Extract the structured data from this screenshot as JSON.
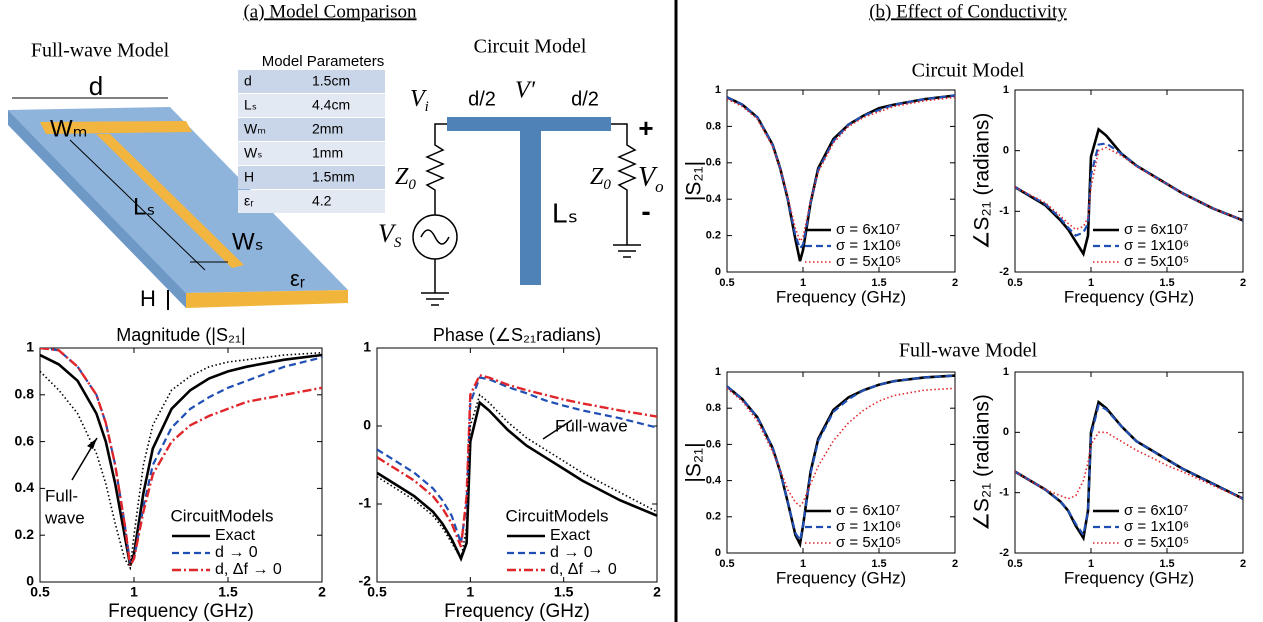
{
  "panel_a": {
    "heading": "(a) Model Comparison",
    "geometry_title": "Full-wave Model",
    "geometry_labels": {
      "d": "d",
      "wm": "Wₘ",
      "ls": "Lₛ",
      "ws": "Wₛ",
      "h": "H",
      "er": "εᵣ"
    }
  },
  "table": {
    "title": "Model Parameters",
    "rows": [
      [
        "d",
        "1.5cm"
      ],
      [
        "Lₛ",
        "4.4cm"
      ],
      [
        "Wₘ",
        "2mm"
      ],
      [
        "Wₛ",
        "1mm"
      ],
      [
        "H",
        "1.5mm"
      ],
      [
        "εᵣ",
        "4.2"
      ]
    ]
  },
  "circuit": {
    "title": "Circuit Model",
    "vi": [
      "V",
      "i"
    ],
    "d_left": "d/2",
    "vp": "V′",
    "d_right": "d/2",
    "plus": "+",
    "minus": "-",
    "z_left": [
      "Z",
      "0"
    ],
    "z_right": [
      "Z",
      "0"
    ],
    "vs": [
      "V",
      "S"
    ],
    "vo": [
      "V",
      "o"
    ],
    "ls": "Lₛ"
  },
  "panel_b": {
    "heading": "(b) Effect of Conductivity",
    "subheadings": [
      "Circuit Model",
      "Full-wave Model"
    ]
  },
  "chart_data": [
    {
      "type": "line",
      "title": "Magnitude (|S₂₁|",
      "xlabel": "Frequency (GHz)",
      "legend_title": "CircuitModels",
      "legend": "lower right",
      "annotation": [
        "Full-",
        "wave"
      ],
      "x": [
        0.5,
        0.6,
        0.7,
        0.8,
        0.85,
        0.9,
        0.95,
        0.98,
        1.0,
        1.05,
        1.1,
        1.2,
        1.3,
        1.4,
        1.5,
        1.6,
        1.8,
        2.0
      ],
      "xlim": [
        0.5,
        2
      ],
      "xticks": [
        0.5,
        1,
        1.5,
        2
      ],
      "ylim": [
        0,
        1
      ],
      "yticks": [
        0,
        0.2,
        0.4,
        0.6,
        0.8,
        1
      ],
      "series": [
        {
          "name": "Exact",
          "color": "#000000",
          "dash": "solid",
          "values": [
            0.97,
            0.93,
            0.86,
            0.72,
            0.6,
            0.42,
            0.2,
            0.07,
            0.12,
            0.38,
            0.57,
            0.74,
            0.82,
            0.87,
            0.9,
            0.92,
            0.95,
            0.97
          ]
        },
        {
          "name": "d → 0",
          "color": "#1f4fb4",
          "dash": "dashed",
          "values": [
            1.0,
            0.99,
            0.92,
            0.8,
            0.68,
            0.5,
            0.25,
            0.08,
            0.1,
            0.32,
            0.5,
            0.66,
            0.74,
            0.79,
            0.83,
            0.86,
            0.92,
            0.96
          ]
        },
        {
          "name": "d, Δf → 0",
          "color": "#e0262b",
          "dash": "dashdot",
          "values": [
            1.0,
            0.99,
            0.92,
            0.8,
            0.68,
            0.5,
            0.25,
            0.07,
            0.1,
            0.3,
            0.46,
            0.6,
            0.67,
            0.71,
            0.74,
            0.77,
            0.8,
            0.83
          ]
        },
        {
          "color": "#000000",
          "dash": "dotted",
          "values": [
            0.9,
            0.82,
            0.72,
            0.55,
            0.42,
            0.25,
            0.1,
            0.06,
            0.2,
            0.5,
            0.67,
            0.82,
            0.88,
            0.92,
            0.94,
            0.95,
            0.97,
            0.98
          ]
        }
      ]
    },
    {
      "type": "line",
      "title": "Phase (∠S₂₁radians)",
      "xlabel": "Frequency (GHz)",
      "legend_title": "CircuitModels",
      "legend": "lower right",
      "annotation": [
        "Full-wave"
      ],
      "x": [
        0.5,
        0.6,
        0.7,
        0.8,
        0.85,
        0.9,
        0.95,
        0.98,
        1.0,
        1.05,
        1.1,
        1.2,
        1.3,
        1.4,
        1.5,
        1.6,
        1.8,
        2.0
      ],
      "xlim": [
        0.5,
        2
      ],
      "xticks": [
        0.5,
        1,
        1.5,
        2
      ],
      "ylim": [
        -2,
        1
      ],
      "yticks": [
        -2,
        -1,
        0,
        1
      ],
      "series": [
        {
          "name": "Exact",
          "color": "#000000",
          "dash": "solid",
          "values": [
            -0.6,
            -0.75,
            -0.9,
            -1.1,
            -1.25,
            -1.45,
            -1.7,
            -1.5,
            -0.2,
            0.3,
            0.2,
            -0.05,
            -0.25,
            -0.4,
            -0.55,
            -0.7,
            -0.95,
            -1.15
          ]
        },
        {
          "name": "d → 0",
          "color": "#1f4fb4",
          "dash": "dashed",
          "values": [
            -0.3,
            -0.45,
            -0.6,
            -0.8,
            -0.95,
            -1.15,
            -1.5,
            -1.0,
            0.3,
            0.62,
            0.6,
            0.5,
            0.42,
            0.33,
            0.26,
            0.2,
            0.1,
            -0.02
          ]
        },
        {
          "name": "d, Δf → 0",
          "color": "#e0262b",
          "dash": "dashdot",
          "values": [
            -0.4,
            -0.55,
            -0.7,
            -0.9,
            -1.05,
            -1.25,
            -1.55,
            -0.9,
            0.4,
            0.65,
            0.62,
            0.53,
            0.46,
            0.4,
            0.34,
            0.29,
            0.2,
            0.12
          ]
        },
        {
          "color": "#000000",
          "dash": "dotted",
          "values": [
            -0.65,
            -0.8,
            -0.95,
            -1.15,
            -1.3,
            -1.5,
            -1.7,
            -1.3,
            0.0,
            0.4,
            0.3,
            0.05,
            -0.15,
            -0.3,
            -0.45,
            -0.6,
            -0.85,
            -1.1
          ]
        }
      ]
    },
    {
      "type": "line",
      "xlabel": "Frequency (GHz)",
      "ylabel": "|S₂₁|",
      "legend": "lower right",
      "x": [
        0.5,
        0.6,
        0.7,
        0.8,
        0.85,
        0.9,
        0.95,
        0.98,
        1.0,
        1.05,
        1.1,
        1.2,
        1.3,
        1.4,
        1.5,
        1.6,
        1.8,
        2.0
      ],
      "xlim": [
        0.5,
        2
      ],
      "xticks": [
        0.5,
        1,
        1.5,
        2
      ],
      "ylim": [
        0,
        1
      ],
      "yticks": [
        0,
        0.2,
        0.4,
        0.6,
        0.8,
        1
      ],
      "series": [
        {
          "name": "σ = 6x10⁷",
          "color": "#000000",
          "dash": "solid",
          "values": [
            0.96,
            0.92,
            0.85,
            0.7,
            0.57,
            0.4,
            0.18,
            0.06,
            0.12,
            0.38,
            0.57,
            0.73,
            0.81,
            0.86,
            0.9,
            0.92,
            0.95,
            0.97
          ]
        },
        {
          "name": "σ = 1x10⁶",
          "color": "#1f4fb4",
          "dash": "dashed",
          "values": [
            0.96,
            0.92,
            0.85,
            0.7,
            0.57,
            0.4,
            0.2,
            0.13,
            0.15,
            0.38,
            0.56,
            0.72,
            0.81,
            0.86,
            0.89,
            0.92,
            0.95,
            0.97
          ]
        },
        {
          "name": "σ = 5x10⁵",
          "color": "#e0262b",
          "dash": "dotted",
          "values": [
            0.95,
            0.91,
            0.84,
            0.69,
            0.57,
            0.41,
            0.24,
            0.17,
            0.19,
            0.39,
            0.55,
            0.71,
            0.8,
            0.85,
            0.88,
            0.91,
            0.94,
            0.96
          ]
        }
      ]
    },
    {
      "type": "line",
      "xlabel": "Frequency (GHz)",
      "ylabel": "∠S₂₁ (radians)",
      "legend": "lower right",
      "x": [
        0.5,
        0.6,
        0.7,
        0.8,
        0.85,
        0.9,
        0.95,
        0.98,
        1.0,
        1.05,
        1.1,
        1.2,
        1.3,
        1.4,
        1.5,
        1.6,
        1.8,
        2.0
      ],
      "xlim": [
        0.5,
        2
      ],
      "xticks": [
        0.5,
        1,
        1.5,
        2
      ],
      "ylim": [
        -2,
        1
      ],
      "yticks": [
        -2,
        -1,
        0,
        1
      ],
      "series": [
        {
          "name": "σ = 6x10⁷",
          "color": "#000000",
          "dash": "solid",
          "values": [
            -0.6,
            -0.75,
            -0.9,
            -1.15,
            -1.3,
            -1.5,
            -1.7,
            -1.4,
            -0.1,
            0.35,
            0.25,
            -0.05,
            -0.25,
            -0.4,
            -0.55,
            -0.7,
            -0.95,
            -1.15
          ]
        },
        {
          "name": "σ = 1x10⁶",
          "color": "#1f4fb4",
          "dash": "dashed",
          "values": [
            -0.6,
            -0.74,
            -0.88,
            -1.12,
            -1.27,
            -1.4,
            -1.35,
            -1.2,
            -0.4,
            0.1,
            0.12,
            -0.05,
            -0.25,
            -0.4,
            -0.55,
            -0.7,
            -0.95,
            -1.15
          ]
        },
        {
          "name": "σ = 5x10⁵",
          "color": "#e0262b",
          "dash": "dotted",
          "values": [
            -0.6,
            -0.73,
            -0.86,
            -1.08,
            -1.2,
            -1.3,
            -1.25,
            -1.1,
            -0.6,
            0.0,
            0.05,
            -0.08,
            -0.26,
            -0.41,
            -0.55,
            -0.7,
            -0.95,
            -1.15
          ]
        }
      ]
    },
    {
      "type": "line",
      "xlabel": "Frequency (GHz)",
      "ylabel": "|S₂₁|",
      "legend": "lower right",
      "x": [
        0.5,
        0.6,
        0.7,
        0.8,
        0.85,
        0.9,
        0.95,
        0.98,
        1.0,
        1.05,
        1.1,
        1.2,
        1.3,
        1.4,
        1.5,
        1.6,
        1.8,
        2.0
      ],
      "xlim": [
        0.5,
        2
      ],
      "xticks": [
        0.5,
        1,
        1.5,
        2
      ],
      "ylim": [
        0,
        1
      ],
      "yticks": [
        0,
        0.2,
        0.4,
        0.6,
        0.8,
        1
      ],
      "series": [
        {
          "name": "σ = 6x10⁷",
          "color": "#000000",
          "dash": "solid",
          "values": [
            0.92,
            0.85,
            0.75,
            0.58,
            0.45,
            0.28,
            0.1,
            0.05,
            0.15,
            0.45,
            0.63,
            0.79,
            0.86,
            0.9,
            0.93,
            0.95,
            0.97,
            0.98
          ]
        },
        {
          "name": "σ = 1x10⁶",
          "color": "#1f4fb4",
          "dash": "dashed",
          "values": [
            0.92,
            0.85,
            0.75,
            0.58,
            0.45,
            0.28,
            0.11,
            0.07,
            0.15,
            0.44,
            0.62,
            0.78,
            0.85,
            0.9,
            0.93,
            0.95,
            0.97,
            0.98
          ]
        },
        {
          "name": "σ = 5x10⁵",
          "color": "#e0262b",
          "dash": "dotted",
          "values": [
            0.91,
            0.84,
            0.73,
            0.56,
            0.46,
            0.35,
            0.28,
            0.26,
            0.28,
            0.38,
            0.48,
            0.62,
            0.72,
            0.79,
            0.84,
            0.87,
            0.9,
            0.91
          ]
        }
      ]
    },
    {
      "type": "line",
      "xlabel": "Frequency (GHz)",
      "ylabel": "∠S₂₁ (radians)",
      "legend": "lower right",
      "x": [
        0.5,
        0.6,
        0.7,
        0.8,
        0.85,
        0.9,
        0.95,
        0.98,
        1.0,
        1.05,
        1.1,
        1.2,
        1.3,
        1.4,
        1.5,
        1.6,
        1.8,
        2.0
      ],
      "xlim": [
        0.5,
        2
      ],
      "xticks": [
        0.5,
        1,
        1.5,
        2
      ],
      "ylim": [
        -2,
        1
      ],
      "yticks": [
        -2,
        -1,
        0,
        1
      ],
      "series": [
        {
          "name": "σ = 6x10⁷",
          "color": "#000000",
          "dash": "solid",
          "values": [
            -0.65,
            -0.8,
            -0.95,
            -1.15,
            -1.3,
            -1.55,
            -1.75,
            -1.3,
            0.0,
            0.5,
            0.4,
            0.1,
            -0.15,
            -0.3,
            -0.45,
            -0.6,
            -0.85,
            -1.1
          ]
        },
        {
          "name": "σ = 1x10⁶",
          "color": "#1f4fb4",
          "dash": "dashed",
          "values": [
            -0.65,
            -0.8,
            -0.95,
            -1.15,
            -1.3,
            -1.52,
            -1.7,
            -1.3,
            -0.05,
            0.45,
            0.38,
            0.1,
            -0.15,
            -0.3,
            -0.45,
            -0.6,
            -0.85,
            -1.1
          ]
        },
        {
          "name": "σ = 5x10⁵",
          "color": "#e0262b",
          "dash": "dotted",
          "values": [
            -0.65,
            -0.8,
            -0.95,
            -1.05,
            -1.1,
            -1.05,
            -0.8,
            -0.5,
            -0.2,
            0.0,
            0.0,
            -0.15,
            -0.3,
            -0.42,
            -0.55,
            -0.65,
            -0.88,
            -1.1
          ]
        }
      ]
    }
  ]
}
